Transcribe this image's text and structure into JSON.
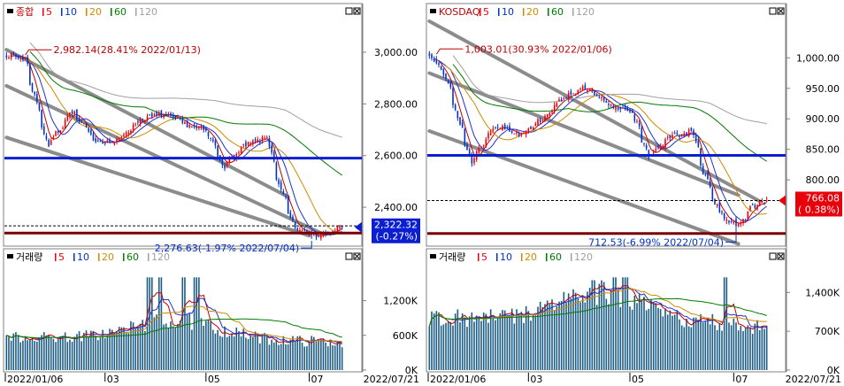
{
  "panels": [
    {
      "price": {
        "legend": {
          "name": "종합",
          "ma": [
            "5",
            "10",
            "20",
            "60",
            "120"
          ]
        },
        "y_ticks": [
          "3,000.00",
          "2,800.00",
          "2,600.00",
          "2,400.00"
        ],
        "high_label": "2,982.14(28.41% 2022/01/13)",
        "low_label": "2,276.63(-1.97% 2022/07/04)",
        "last_value": "2,322.32",
        "last_change": "(-0.27%)"
      },
      "volume": {
        "legend": {
          "name": "거래량",
          "ma": [
            "5",
            "10",
            "20",
            "60",
            "120"
          ]
        },
        "y_ticks": [
          "1,200K",
          "600K",
          "0K"
        ]
      },
      "x_labels": [
        "2022/01/06",
        "03",
        "05",
        "07"
      ],
      "date_box": "2022/07/21"
    },
    {
      "price": {
        "legend": {
          "name": "KOSDAQ",
          "ma": [
            "5",
            "10",
            "20",
            "60",
            "120"
          ]
        },
        "y_ticks": [
          "1,000.00",
          "950.00",
          "900.00",
          "850.00",
          "800.00"
        ],
        "high_label": "1,003.01(30.93% 2022/01/06)",
        "low_label": "712.53(-6.99% 2022/07/04)",
        "last_value": "766.08",
        "last_change": "( 0.38%)"
      },
      "volume": {
        "legend": {
          "name": "거래량",
          "ma": [
            "5",
            "10",
            "20",
            "60",
            "120"
          ]
        },
        "y_ticks": [
          "1,400K",
          "700K",
          "0K"
        ]
      },
      "x_labels": [
        "2022/01/06",
        "03",
        "05",
        "07"
      ],
      "date_box": "2022/07/21"
    }
  ],
  "colors": {
    "up": "#e8000b",
    "down": "#0033cc",
    "volume": "#1c5c84",
    "ma5": "#c00000",
    "ma10": "#2030d0",
    "ma20": "#d08a00",
    "ma60": "#007a00",
    "ma120": "#a0a0a0",
    "channel": "#8c8c8c",
    "support": "#0b1fd0",
    "floor": "#7a0000",
    "value_box_left": "#0b1fd0",
    "value_box_right": "#e8000b"
  },
  "chart_data": [
    {
      "type": "candlestick",
      "title": "종합",
      "x_start": "2022/01/03",
      "x_end": "2022/07/21",
      "ylim": [
        2270,
        3120
      ],
      "anchors": [
        [
          "2022/01/03",
          2990
        ],
        [
          "2022/01/13",
          2975
        ],
        [
          "2022/01/27",
          2640
        ],
        [
          "2022/02/10",
          2770
        ],
        [
          "2022/02/24",
          2660
        ],
        [
          "2022/03/08",
          2650
        ],
        [
          "2022/03/23",
          2740
        ],
        [
          "2022/04/05",
          2760
        ],
        [
          "2022/04/20",
          2720
        ],
        [
          "2022/05/02",
          2690
        ],
        [
          "2022/05/12",
          2560
        ],
        [
          "2022/05/25",
          2640
        ],
        [
          "2022/06/07",
          2670
        ],
        [
          "2022/06/13",
          2500
        ],
        [
          "2022/06/23",
          2320
        ],
        [
          "2022/07/01",
          2300
        ],
        [
          "2022/07/06",
          2290
        ],
        [
          "2022/07/21",
          2322
        ]
      ],
      "high": {
        "date": "2022/01/13",
        "value": 2982.14
      },
      "low": {
        "date": "2022/07/04",
        "value": 2276.63
      },
      "last": 2322.32,
      "support_level": 2590,
      "floor_level": 2300,
      "dashed_level": 2328,
      "channels": [
        [
          [
            "2022/01/03",
            3010
          ],
          [
            "2022/06/20",
            2440
          ]
        ],
        [
          [
            "2022/01/03",
            2870
          ],
          [
            "2022/07/08",
            2300
          ]
        ],
        [
          [
            "2022/01/03",
            2670
          ],
          [
            "2022/07/01",
            2290
          ]
        ]
      ],
      "volume": {
        "ylim": [
          0,
          1820
        ],
        "base": 560,
        "spike_dates": [
          "2022/03/29",
          "2022/04/04",
          "2022/04/18",
          "2022/04/26"
        ]
      }
    },
    {
      "type": "candlestick",
      "title": "KOSDAQ",
      "x_start": "2022/01/03",
      "x_end": "2022/07/21",
      "ylim": [
        700,
        1060
      ],
      "anchors": [
        [
          "2022/01/03",
          1003
        ],
        [
          "2022/01/10",
          985
        ],
        [
          "2022/01/27",
          830
        ],
        [
          "2022/02/10",
          890
        ],
        [
          "2022/02/25",
          875
        ],
        [
          "2022/03/10",
          900
        ],
        [
          "2022/03/25",
          940
        ],
        [
          "2022/04/05",
          950
        ],
        [
          "2022/04/20",
          920
        ],
        [
          "2022/05/02",
          915
        ],
        [
          "2022/05/12",
          840
        ],
        [
          "2022/05/25",
          870
        ],
        [
          "2022/06/07",
          880
        ],
        [
          "2022/06/13",
          820
        ],
        [
          "2022/06/23",
          750
        ],
        [
          "2022/07/04",
          720
        ],
        [
          "2022/07/12",
          755
        ],
        [
          "2022/07/21",
          766
        ]
      ],
      "high": {
        "date": "2022/01/06",
        "value": 1003.01
      },
      "low": {
        "date": "2022/07/04",
        "value": 712.53
      },
      "last": 766.08,
      "support_level": 840,
      "floor_level": 712,
      "dashed_level": 766,
      "channels": [
        [
          [
            "2022/01/03",
            1060
          ],
          [
            "2022/07/16",
            765
          ]
        ],
        [
          [
            "2022/01/03",
            975
          ],
          [
            "2022/07/05",
            775
          ]
        ],
        [
          [
            "2022/01/03",
            880
          ],
          [
            "2022/07/05",
            695
          ]
        ]
      ],
      "volume": {
        "ylim": [
          0,
          1900
        ],
        "base": 920,
        "spike_dates": [
          "2022/04/22",
          "2022/04/28",
          "2022/06/27"
        ]
      }
    }
  ]
}
